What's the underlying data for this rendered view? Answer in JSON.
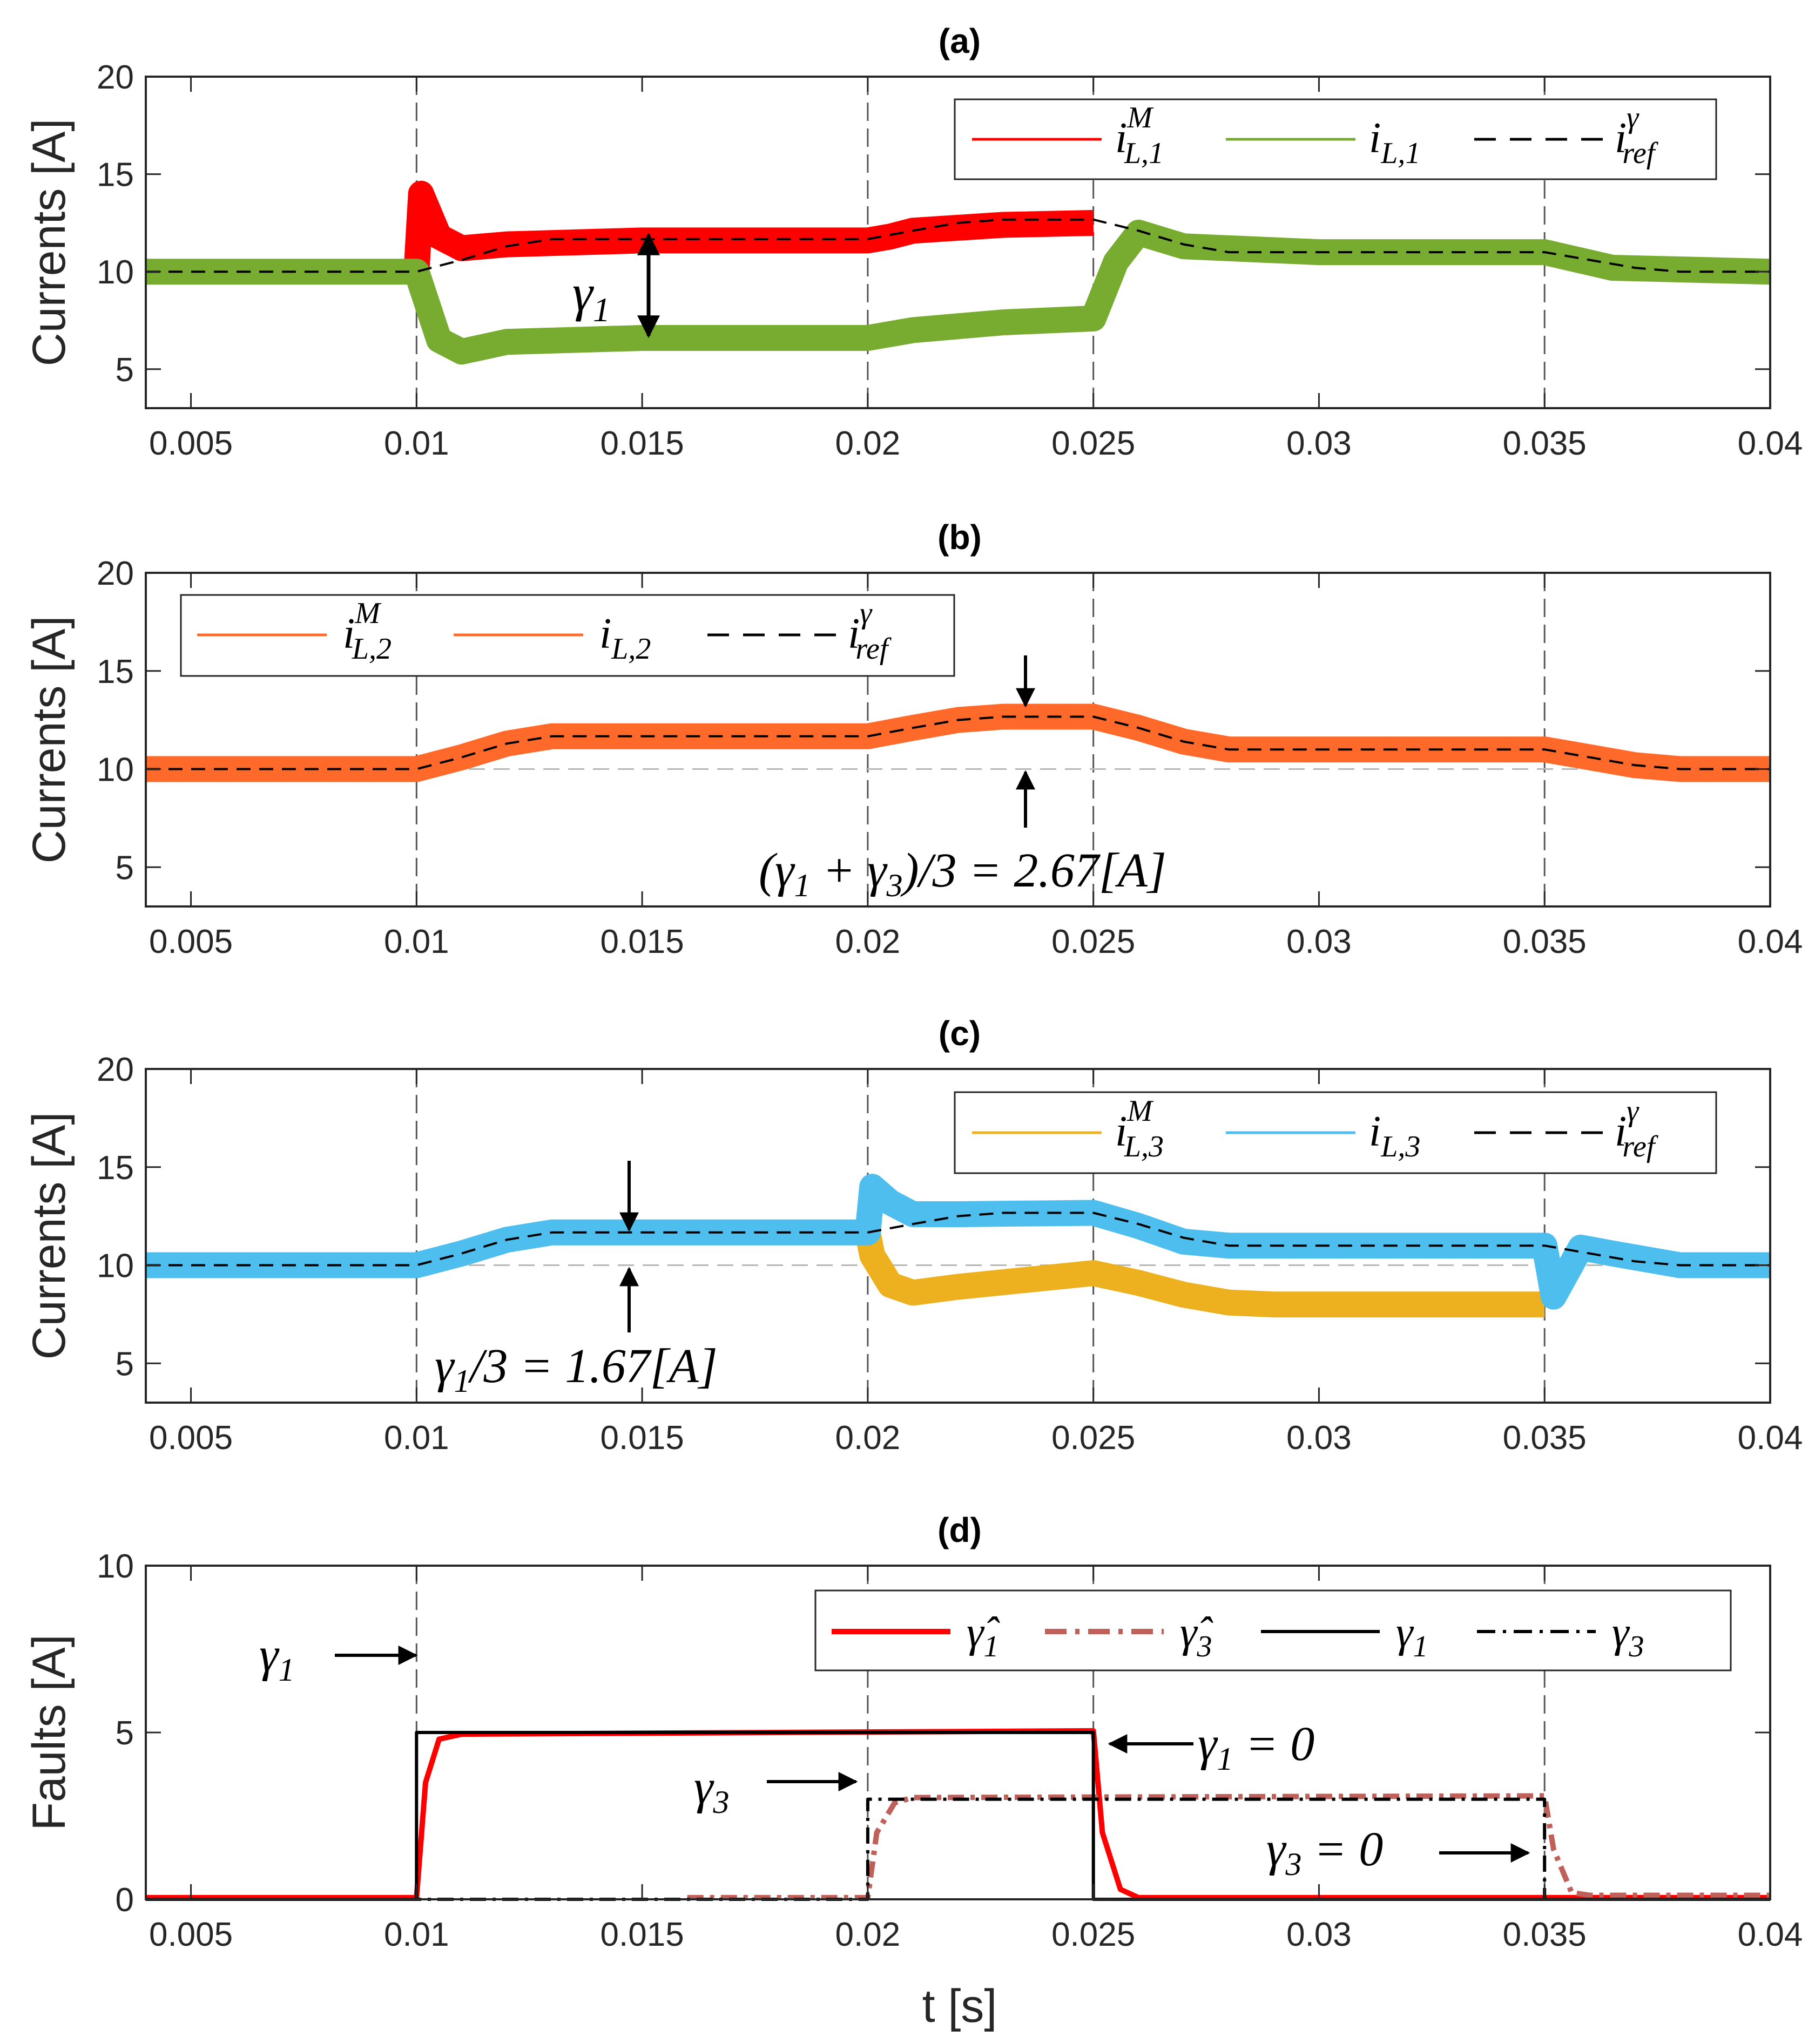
{
  "chart_data": [
    {
      "id": "a",
      "type": "line",
      "title": "(a)",
      "xlabel": "",
      "ylabel": "Currents [A]",
      "xlim": [
        0.004,
        0.04
      ],
      "ylim": [
        3,
        20
      ],
      "xticks": [
        "0.005",
        "0.01",
        "0.015",
        "0.02",
        "0.025",
        "0.03",
        "0.035",
        "0.04"
      ],
      "xtick_values": [
        0.005,
        0.01,
        0.015,
        0.02,
        0.025,
        0.03,
        0.035,
        0.04
      ],
      "yticks": [
        "5",
        "10",
        "15",
        "20"
      ],
      "ytick_values": [
        5,
        10,
        15,
        20
      ],
      "event_lines": [
        0.01,
        0.02,
        0.025,
        0.035
      ],
      "legend_position": "top-right",
      "series": [
        {
          "name": "i^M_{L,1}",
          "color": "#ff0000",
          "style": "band",
          "x": [
            0.01,
            0.0101,
            0.0105,
            0.011,
            0.012,
            0.015,
            0.02,
            0.0205,
            0.021,
            0.023,
            0.025
          ],
          "values": [
            10.0,
            14.0,
            11.8,
            11.2,
            11.4,
            11.6,
            11.6,
            11.8,
            12.1,
            12.4,
            12.5
          ]
        },
        {
          "name": "i_{L,1}",
          "color": "#77ac30",
          "style": "band",
          "x": [
            0.004,
            0.01,
            0.0105,
            0.011,
            0.012,
            0.015,
            0.02,
            0.021,
            0.023,
            0.025,
            0.0255,
            0.026,
            0.027,
            0.03,
            0.035,
            0.0365,
            0.04
          ],
          "values": [
            10.0,
            10.0,
            6.5,
            5.9,
            6.4,
            6.6,
            6.6,
            7.0,
            7.4,
            7.6,
            10.5,
            12.0,
            11.3,
            11.0,
            11.0,
            10.2,
            10.0
          ]
        },
        {
          "name": "i^γ_{ref}",
          "color": "#000000",
          "style": "dashed",
          "x": [
            0.004,
            0.01,
            0.011,
            0.012,
            0.013,
            0.02,
            0.021,
            0.022,
            0.023,
            0.025,
            0.026,
            0.027,
            0.028,
            0.035,
            0.036,
            0.037,
            0.038,
            0.04
          ],
          "values": [
            10.0,
            10.0,
            10.6,
            11.3,
            11.67,
            11.67,
            12.1,
            12.5,
            12.67,
            12.67,
            12.1,
            11.4,
            11.0,
            11.0,
            10.6,
            10.2,
            10.0,
            10.0
          ]
        }
      ],
      "annotations": [
        {
          "text": "γ1",
          "x": 0.015
        }
      ]
    },
    {
      "id": "b",
      "type": "line",
      "title": "(b)",
      "xlabel": "",
      "ylabel": "Currents [A]",
      "xlim": [
        0.004,
        0.04
      ],
      "ylim": [
        3,
        20
      ],
      "xticks": [
        "0.005",
        "0.01",
        "0.015",
        "0.02",
        "0.025",
        "0.03",
        "0.035",
        "0.04"
      ],
      "xtick_values": [
        0.005,
        0.01,
        0.015,
        0.02,
        0.025,
        0.03,
        0.035,
        0.04
      ],
      "yticks": [
        "5",
        "10",
        "15",
        "20"
      ],
      "ytick_values": [
        5,
        10,
        15,
        20
      ],
      "event_lines": [
        0.01,
        0.02,
        0.025,
        0.035
      ],
      "legend_position": "top-left",
      "series": [
        {
          "name": "i^M_{L,2}",
          "color": "#ff6929",
          "style": "band",
          "x": [
            0.004,
            0.01,
            0.011,
            0.012,
            0.013,
            0.02,
            0.021,
            0.022,
            0.023,
            0.025,
            0.026,
            0.027,
            0.028,
            0.035,
            0.036,
            0.037,
            0.038,
            0.04
          ],
          "values": [
            10.0,
            10.0,
            10.6,
            11.3,
            11.67,
            11.67,
            12.1,
            12.5,
            12.67,
            12.67,
            12.1,
            11.4,
            11.0,
            11.0,
            10.6,
            10.2,
            10.0,
            10.0
          ]
        },
        {
          "name": "i_{L,2}",
          "color": "#ff6929",
          "style": "line",
          "x": [
            0.004,
            0.01,
            0.011,
            0.012,
            0.013,
            0.02,
            0.021,
            0.022,
            0.023,
            0.025,
            0.026,
            0.027,
            0.028,
            0.035,
            0.036,
            0.037,
            0.038,
            0.04
          ],
          "values": [
            10.0,
            10.0,
            10.6,
            11.3,
            11.67,
            11.67,
            12.1,
            12.5,
            12.67,
            12.67,
            12.1,
            11.4,
            11.0,
            11.0,
            10.6,
            10.2,
            10.0,
            10.0
          ]
        },
        {
          "name": "i^γ_{ref}",
          "color": "#000000",
          "style": "dashed",
          "x": [
            0.004,
            0.01,
            0.011,
            0.012,
            0.013,
            0.02,
            0.021,
            0.022,
            0.023,
            0.025,
            0.026,
            0.027,
            0.028,
            0.035,
            0.036,
            0.037,
            0.038,
            0.04
          ],
          "values": [
            10.0,
            10.0,
            10.6,
            11.3,
            11.67,
            11.67,
            12.1,
            12.5,
            12.67,
            12.67,
            12.1,
            11.4,
            11.0,
            11.0,
            10.6,
            10.2,
            10.0,
            10.0
          ]
        }
      ],
      "baseline": 10,
      "annotations": [
        {
          "text": "(γ1 + γ3)/3 = 2.67[A]",
          "x": 0.0235
        }
      ]
    },
    {
      "id": "c",
      "type": "line",
      "title": "(c)",
      "xlabel": "",
      "ylabel": "Currents [A]",
      "xlim": [
        0.004,
        0.04
      ],
      "ylim": [
        3,
        20
      ],
      "xticks": [
        "0.005",
        "0.01",
        "0.015",
        "0.02",
        "0.025",
        "0.03",
        "0.035",
        "0.04"
      ],
      "xtick_values": [
        0.005,
        0.01,
        0.015,
        0.02,
        0.025,
        0.03,
        0.035,
        0.04
      ],
      "yticks": [
        "5",
        "10",
        "15",
        "20"
      ],
      "ytick_values": [
        5,
        10,
        15,
        20
      ],
      "event_lines": [
        0.01,
        0.02,
        0.025,
        0.035
      ],
      "legend_position": "top-right",
      "series": [
        {
          "name": "i^M_{L,3}",
          "color": "#edb120",
          "style": "band",
          "x": [
            0.02,
            0.0201,
            0.0205,
            0.021,
            0.022,
            0.025,
            0.026,
            0.027,
            0.028,
            0.029,
            0.035
          ],
          "values": [
            11.67,
            10.5,
            9.0,
            8.6,
            8.9,
            9.6,
            9.1,
            8.5,
            8.1,
            8.0,
            8.0
          ]
        },
        {
          "name": "i_{L,3}",
          "color": "#4dbeee",
          "style": "band",
          "x": [
            0.004,
            0.01,
            0.011,
            0.012,
            0.013,
            0.02,
            0.0201,
            0.0205,
            0.021,
            0.022,
            0.025,
            0.026,
            0.027,
            0.028,
            0.035,
            0.0352,
            0.0358,
            0.0365,
            0.038,
            0.04
          ],
          "values": [
            10.0,
            10.0,
            10.6,
            11.3,
            11.67,
            11.67,
            14.0,
            13.2,
            12.6,
            12.6,
            12.67,
            12.0,
            11.2,
            11.0,
            11.0,
            8.4,
            10.9,
            10.6,
            10.0,
            10.0
          ]
        },
        {
          "name": "i^γ_{ref}",
          "color": "#000000",
          "style": "dashed",
          "x": [
            0.004,
            0.01,
            0.011,
            0.012,
            0.013,
            0.02,
            0.021,
            0.022,
            0.023,
            0.025,
            0.026,
            0.027,
            0.028,
            0.035,
            0.036,
            0.037,
            0.038,
            0.04
          ],
          "values": [
            10.0,
            10.0,
            10.6,
            11.3,
            11.67,
            11.67,
            12.1,
            12.5,
            12.67,
            12.67,
            12.1,
            11.4,
            11.0,
            11.0,
            10.6,
            10.2,
            10.0,
            10.0
          ]
        }
      ],
      "baseline": 10,
      "annotations": [
        {
          "text": "γ1/3 = 1.67[A]",
          "x": 0.0148
        }
      ]
    },
    {
      "id": "d",
      "type": "line",
      "title": "(d)",
      "xlabel": "t [s]",
      "ylabel": "Faults [A]",
      "xlim": [
        0.004,
        0.04
      ],
      "ylim": [
        0,
        10
      ],
      "xticks": [
        "0.005",
        "0.01",
        "0.015",
        "0.02",
        "0.025",
        "0.03",
        "0.035",
        "0.04"
      ],
      "xtick_values": [
        0.005,
        0.01,
        0.015,
        0.02,
        0.025,
        0.03,
        0.035,
        0.04
      ],
      "yticks": [
        "0",
        "5",
        "10"
      ],
      "ytick_values": [
        0,
        5,
        10
      ],
      "event_lines": [
        0.01,
        0.02,
        0.025,
        0.035
      ],
      "legend_position": "top-right",
      "series": [
        {
          "name": "γ̂1",
          "color": "#ff0000",
          "style": "thick",
          "x": [
            0.004,
            0.01,
            0.0102,
            0.0105,
            0.011,
            0.025,
            0.0252,
            0.0256,
            0.026,
            0.04
          ],
          "values": [
            0.05,
            0.05,
            3.5,
            4.8,
            4.95,
            5.05,
            2.0,
            0.3,
            0.05,
            0.05
          ]
        },
        {
          "name": "γ̂3",
          "color": "#c0605a",
          "style": "thick-dashdot",
          "x": [
            0.016,
            0.02,
            0.0202,
            0.0206,
            0.021,
            0.035,
            0.0352,
            0.0356,
            0.036,
            0.04
          ],
          "values": [
            0.05,
            0.05,
            2.0,
            2.9,
            3.05,
            3.1,
            1.5,
            0.2,
            0.12,
            0.12
          ]
        },
        {
          "name": "γ1",
          "color": "#000000",
          "style": "solid",
          "x": [
            0.004,
            0.01,
            0.01,
            0.025,
            0.025,
            0.04
          ],
          "values": [
            0,
            0,
            5,
            5,
            0,
            0
          ]
        },
        {
          "name": "γ3",
          "color": "#000000",
          "style": "dashdot",
          "x": [
            0.004,
            0.02,
            0.02,
            0.035,
            0.035,
            0.04
          ],
          "values": [
            0,
            0,
            3,
            3,
            0,
            0
          ]
        }
      ],
      "annotations": [
        {
          "text": "γ1",
          "x": 0.01
        },
        {
          "text": "γ1 = 0",
          "x": 0.025
        },
        {
          "text": "γ3",
          "x": 0.02
        },
        {
          "text": "γ3 = 0",
          "x": 0.035
        }
      ]
    }
  ]
}
